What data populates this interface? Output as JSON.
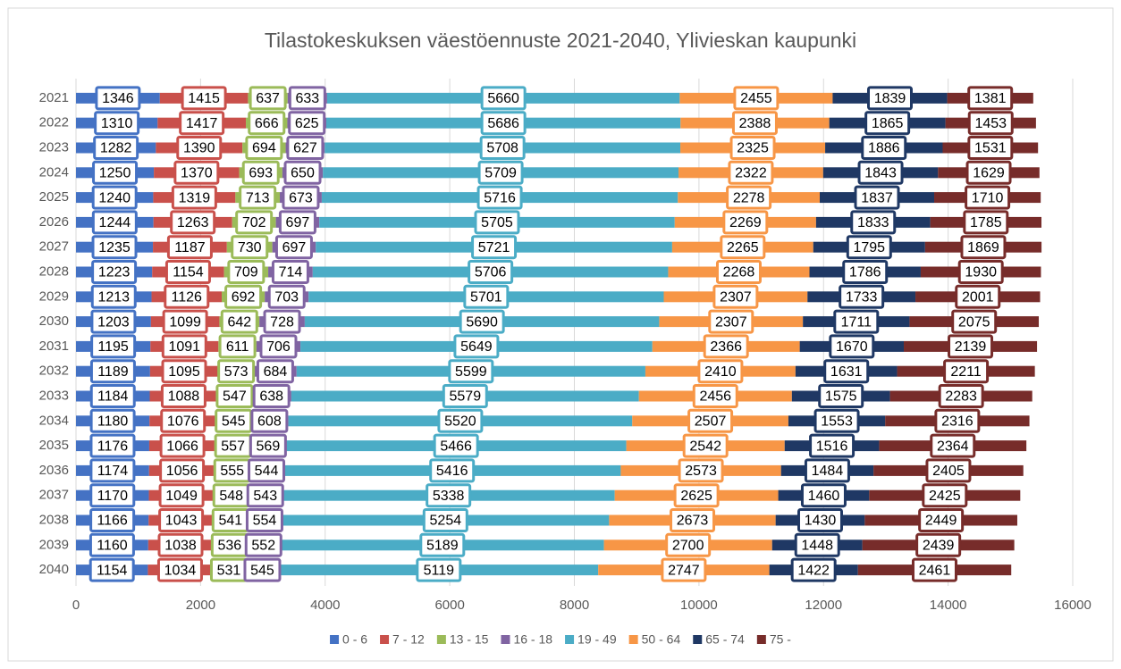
{
  "chart_data": {
    "type": "stacked_barh",
    "title": "Tilastokeskuksen väestöennuste 2021-2040, Ylivieskan kaupunki",
    "categories": [
      "2021",
      "2022",
      "2023",
      "2024",
      "2025",
      "2026",
      "2027",
      "2028",
      "2029",
      "2030",
      "2031",
      "2032",
      "2033",
      "2034",
      "2035",
      "2036",
      "2037",
      "2038",
      "2039",
      "2040"
    ],
    "series": [
      {
        "name": "0 - 6",
        "color": "#4472c4",
        "values": [
          1346,
          1310,
          1282,
          1250,
          1240,
          1244,
          1235,
          1223,
          1213,
          1203,
          1195,
          1189,
          1184,
          1180,
          1176,
          1174,
          1170,
          1166,
          1160,
          1154
        ]
      },
      {
        "name": "7 - 12",
        "color": "#c9504b",
        "values": [
          1415,
          1417,
          1390,
          1370,
          1319,
          1263,
          1187,
          1154,
          1126,
          1099,
          1091,
          1095,
          1088,
          1076,
          1066,
          1056,
          1049,
          1043,
          1038,
          1034
        ]
      },
      {
        "name": "13 - 15",
        "color": "#9bbb59",
        "values": [
          637,
          666,
          694,
          693,
          713,
          702,
          730,
          709,
          692,
          642,
          611,
          573,
          547,
          545,
          557,
          555,
          548,
          541,
          536,
          531
        ]
      },
      {
        "name": "16 - 18",
        "color": "#8064a2",
        "values": [
          633,
          625,
          627,
          650,
          673,
          697,
          697,
          714,
          703,
          728,
          706,
          684,
          638,
          608,
          569,
          544,
          543,
          554,
          552,
          545
        ]
      },
      {
        "name": "19 - 49",
        "color": "#4bacc6",
        "values": [
          5660,
          5686,
          5708,
          5709,
          5716,
          5705,
          5721,
          5706,
          5701,
          5690,
          5649,
          5599,
          5579,
          5520,
          5466,
          5416,
          5338,
          5254,
          5189,
          5119
        ]
      },
      {
        "name": "50 - 64",
        "color": "#f79646",
        "values": [
          2455,
          2388,
          2325,
          2322,
          2278,
          2269,
          2265,
          2268,
          2307,
          2307,
          2366,
          2410,
          2456,
          2507,
          2542,
          2573,
          2625,
          2673,
          2700,
          2747
        ]
      },
      {
        "name": "65 - 74",
        "color": "#1f3864",
        "values": [
          1839,
          1865,
          1886,
          1843,
          1837,
          1833,
          1795,
          1786,
          1733,
          1711,
          1670,
          1631,
          1575,
          1553,
          1516,
          1484,
          1460,
          1430,
          1448,
          1422
        ]
      },
      {
        "name": "75 -",
        "color": "#772c2a",
        "values": [
          1381,
          1453,
          1531,
          1629,
          1710,
          1785,
          1869,
          1930,
          2001,
          2075,
          2139,
          2211,
          2283,
          2316,
          2364,
          2405,
          2425,
          2449,
          2439,
          2461
        ]
      }
    ],
    "xlim": [
      0,
      16000
    ],
    "xticks": [
      0,
      2000,
      4000,
      6000,
      8000,
      10000,
      12000,
      14000,
      16000
    ],
    "grid": true
  }
}
